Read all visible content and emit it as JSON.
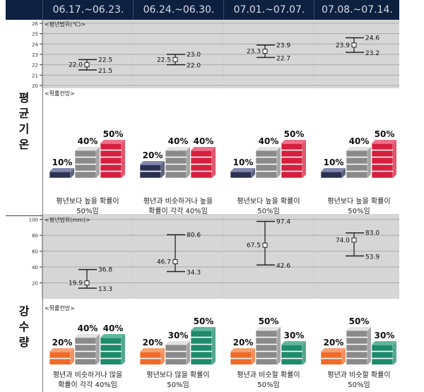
{
  "periods": [
    "06.17.~06.23.",
    "06.24.~06.30.",
    "07.01.~07.07.",
    "07.08.~07.14."
  ],
  "temperature": {
    "label": "평균기온",
    "range_label": "<평년범위(℃)>",
    "prob_label": "<확률전망>",
    "descriptions": [
      "평년보다 높을 확률이\n50%임",
      "평년과 비슷하거나 높을\n확률이 각각 40%임",
      "평년보다 높을 확률이\n50%임",
      "평년보다 높을 확률이\n50%임"
    ],
    "colors": {
      "below": "#2b3152",
      "below_top": "#8088b0",
      "normal": "#8a8a8a",
      "normal_top": "#e2e2e2",
      "above": "#d61f3e",
      "above_top": "#ec6f8c"
    }
  },
  "precipitation": {
    "label": "강수량",
    "range_label": "<평년범위(mm)>",
    "prob_label": "<확률전망>",
    "descriptions": [
      "평년과 비슷하거나 많을\n확률이 각각 40%임",
      "평년보다 많을 확률이\n50%임",
      "평년과 비슷할 확률이\n50%임",
      "평년과 비슷할 확률이\n50%임"
    ],
    "colors": {
      "below": "#f06a28",
      "below_top": "#f5a070",
      "normal": "#8a8a8a",
      "normal_top": "#e2e2e2",
      "above": "#1e8a6c",
      "above_top": "#5cb89a"
    }
  },
  "chart_data": [
    {
      "type": "errorbar",
      "title": "<평년범위(℃)>",
      "categories": [
        "06.17.~06.23.",
        "06.24.~06.30.",
        "07.01.~07.07.",
        "07.08.~07.14."
      ],
      "mean": [
        22.0,
        22.5,
        23.3,
        23.9
      ],
      "lower": [
        21.5,
        22.0,
        22.7,
        23.2
      ],
      "upper": [
        22.5,
        23.0,
        23.9,
        24.6
      ],
      "ylim": [
        20,
        26
      ],
      "yticks": [
        20,
        21,
        22,
        23,
        24,
        25,
        26
      ],
      "grid": true
    },
    {
      "type": "bar",
      "title": "<확률전망>",
      "subject": "평균기온",
      "categories": [
        "06.17.~06.23.",
        "06.24.~06.30.",
        "07.01.~07.07.",
        "07.08.~07.14."
      ],
      "series": [
        {
          "name": "below",
          "values": [
            10,
            20,
            10,
            10
          ]
        },
        {
          "name": "normal",
          "values": [
            40,
            40,
            40,
            40
          ]
        },
        {
          "name": "above",
          "values": [
            50,
            40,
            50,
            50
          ]
        }
      ]
    },
    {
      "type": "errorbar",
      "title": "<평년범위(mm)>",
      "categories": [
        "06.17.~06.23.",
        "06.24.~06.30.",
        "07.01.~07.07.",
        "07.08.~07.14."
      ],
      "mean": [
        19.9,
        46.7,
        67.5,
        74.0
      ],
      "lower": [
        13.3,
        34.3,
        42.6,
        53.9
      ],
      "upper": [
        36.8,
        80.6,
        97.4,
        83.0
      ],
      "ylim": [
        0,
        105
      ],
      "yticks": [
        20,
        40,
        60,
        80,
        100
      ],
      "grid": true
    },
    {
      "type": "bar",
      "title": "<확률전망>",
      "subject": "강수량",
      "categories": [
        "06.17.~06.23.",
        "06.24.~06.30.",
        "07.01.~07.07.",
        "07.08.~07.14."
      ],
      "series": [
        {
          "name": "below",
          "values": [
            20,
            20,
            20,
            20
          ]
        },
        {
          "name": "normal",
          "values": [
            40,
            30,
            50,
            50
          ]
        },
        {
          "name": "above",
          "values": [
            40,
            50,
            30,
            30
          ]
        }
      ]
    }
  ]
}
